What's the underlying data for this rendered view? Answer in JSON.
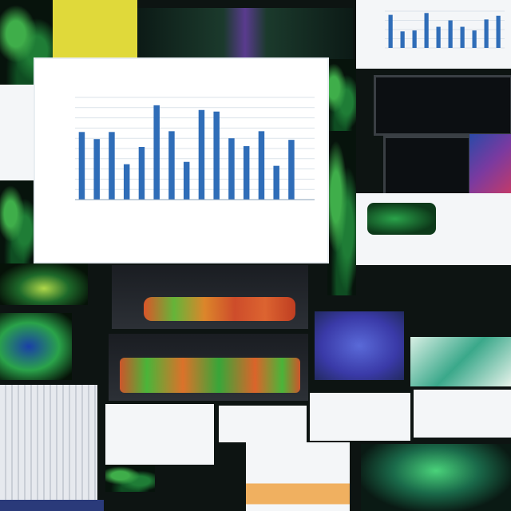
{
  "main_chart": {
    "title": "",
    "xlabel": "",
    "ylabel": ""
  },
  "chart_data": [
    {
      "type": "bar",
      "title": "",
      "xlabel": "",
      "ylabel": "",
      "categories": [
        "",
        "",
        "",
        "",
        "",
        "",
        "",
        "",
        "",
        "",
        "",
        "",
        "",
        "",
        "",
        ""
      ],
      "values": [
        86,
        77,
        86,
        45,
        67,
        120,
        87,
        48,
        114,
        112,
        78,
        68,
        87,
        43,
        76,
        0
      ],
      "ylim": [
        0,
        130
      ],
      "grid": true
    },
    {
      "type": "bar",
      "title": "",
      "categories": [
        "",
        "",
        "",
        "",
        "",
        "",
        "",
        "",
        "",
        ""
      ],
      "values": [
        36,
        18,
        19,
        38,
        23,
        30,
        23,
        19,
        31,
        35
      ],
      "ylim": [
        0,
        40
      ],
      "grid": true
    }
  ],
  "colors": {
    "bar": "#2f6db8",
    "background": "#0d1412"
  }
}
